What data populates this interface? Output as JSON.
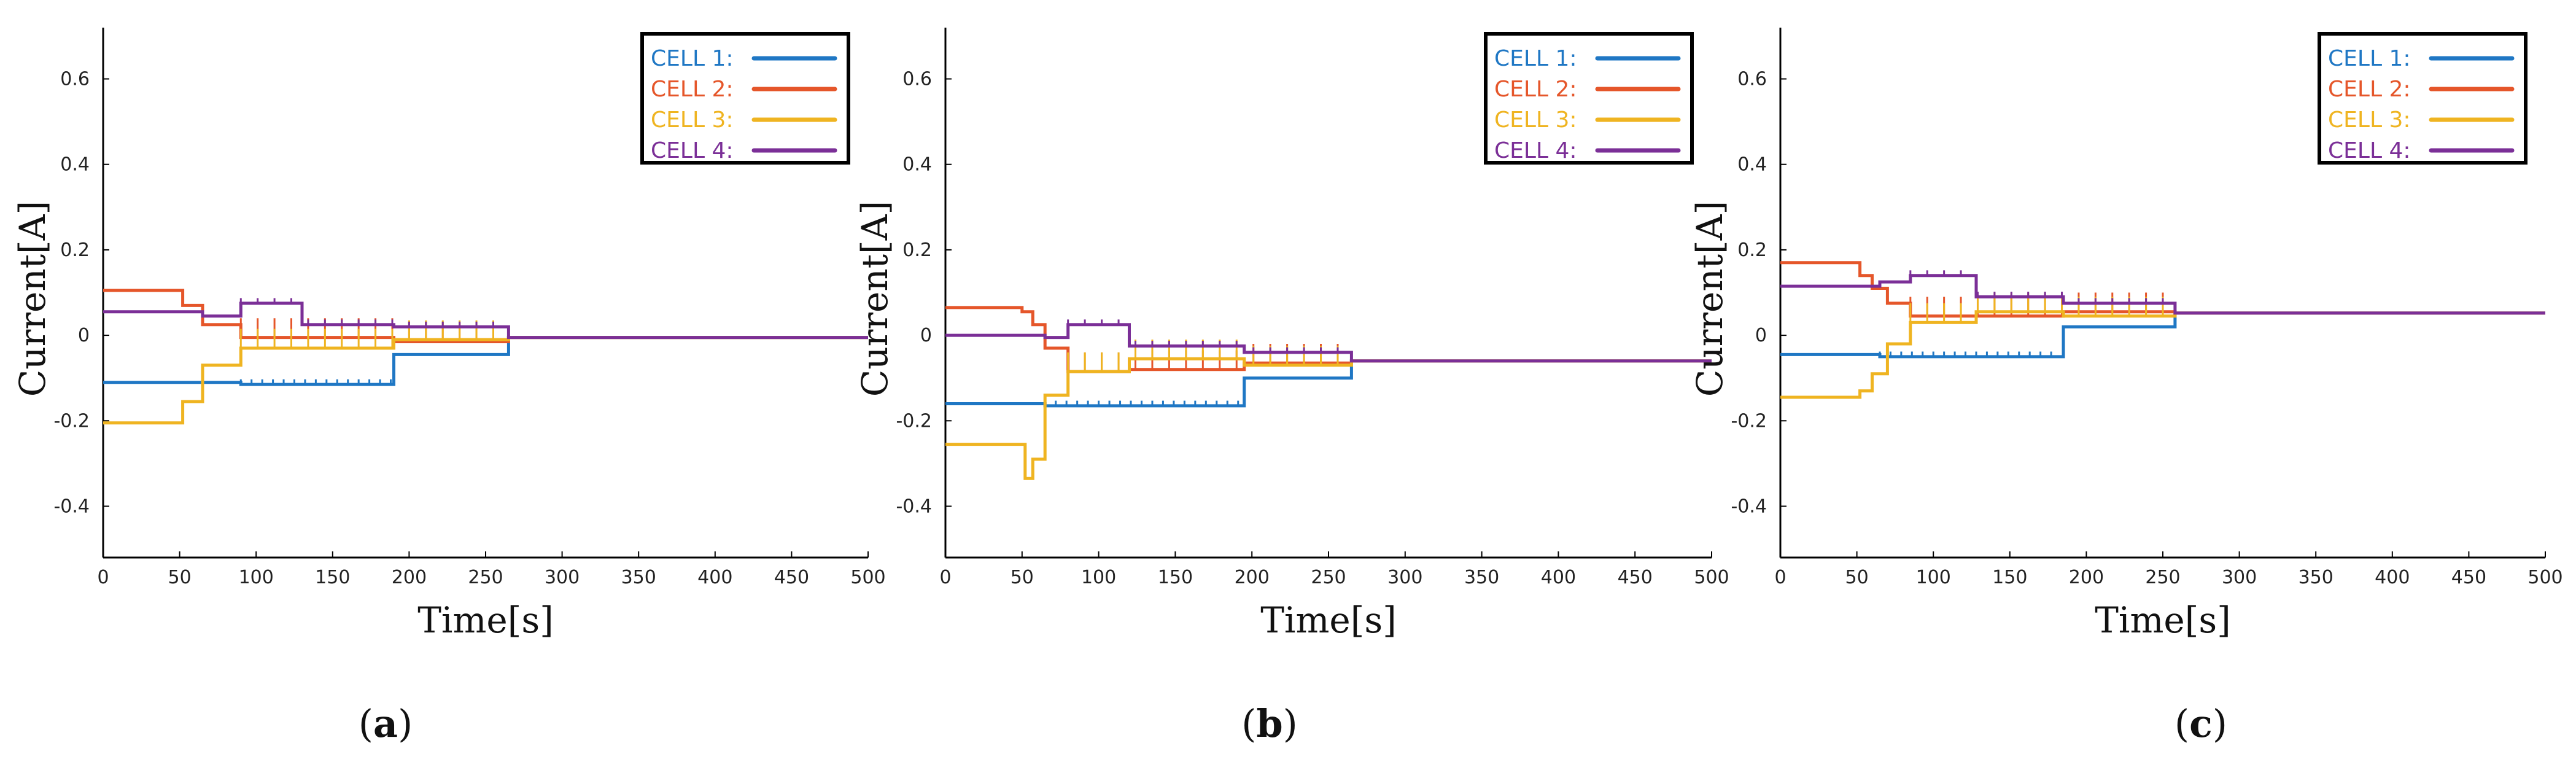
{
  "chart_data": [
    {
      "type": "line",
      "caption": "(a)",
      "caption_letter": "a",
      "xlabel": "Time[s]",
      "ylabel": "Current[A]",
      "xlim": [
        0,
        500
      ],
      "ylim": [
        -0.52,
        0.72
      ],
      "xticks": [
        "0",
        "50",
        "100",
        "150",
        "200",
        "250",
        "300",
        "350",
        "400",
        "450",
        "500"
      ],
      "yticks": [
        "-0.4",
        "-0.2",
        "0",
        "0.2",
        "0.4",
        "0.6"
      ],
      "legend_position": "top-right",
      "series": [
        {
          "name": "CELL 1:",
          "color": "#1f77c4",
          "x": [
            0,
            65,
            90,
            130,
            190,
            265,
            500
          ],
          "y": [
            -0.11,
            -0.11,
            -0.115,
            -0.115,
            -0.045,
            -0.005,
            -0.005
          ],
          "spike_range": [
            90,
            188
          ]
        },
        {
          "name": "CELL 2:",
          "color": "#e5562a",
          "x": [
            0,
            52,
            65,
            90,
            130,
            190,
            265,
            500
          ],
          "y": [
            0.105,
            0.07,
            0.025,
            -0.005,
            -0.005,
            -0.015,
            -0.005,
            -0.005
          ],
          "spike_range": [
            90,
            262
          ]
        },
        {
          "name": "CELL 3:",
          "color": "#efb421",
          "x": [
            0,
            52,
            65,
            90,
            130,
            190,
            265,
            500
          ],
          "y": [
            -0.205,
            -0.155,
            -0.07,
            -0.03,
            -0.03,
            -0.01,
            -0.005,
            -0.005
          ],
          "spike_range": [
            90,
            262
          ]
        },
        {
          "name": "CELL 4:",
          "color": "#7b2f97",
          "x": [
            0,
            52,
            65,
            90,
            130,
            190,
            265,
            500
          ],
          "y": [
            0.055,
            0.055,
            0.045,
            0.075,
            0.025,
            0.02,
            -0.005,
            -0.005
          ],
          "spike_range": [
            90,
            262
          ]
        }
      ]
    },
    {
      "type": "line",
      "caption": "(b)",
      "caption_letter": "b",
      "xlabel": "Time[s]",
      "ylabel": "Current[A]",
      "xlim": [
        0,
        500
      ],
      "ylim": [
        -0.52,
        0.72
      ],
      "xticks": [
        "0",
        "50",
        "100",
        "150",
        "200",
        "250",
        "300",
        "350",
        "400",
        "450",
        "500"
      ],
      "yticks": [
        "-0.4",
        "-0.2",
        "0",
        "0.2",
        "0.4",
        "0.6"
      ],
      "legend_position": "top-right",
      "series": [
        {
          "name": "CELL 1:",
          "color": "#1f77c4",
          "x": [
            0,
            50,
            65,
            120,
            195,
            265,
            500
          ],
          "y": [
            -0.16,
            -0.16,
            -0.165,
            -0.165,
            -0.1,
            -0.06,
            -0.06
          ],
          "spike_range": [
            65,
            192
          ]
        },
        {
          "name": "CELL 2:",
          "color": "#e5562a",
          "x": [
            0,
            50,
            57,
            65,
            80,
            120,
            195,
            265,
            500
          ],
          "y": [
            0.065,
            0.055,
            0.025,
            -0.03,
            -0.085,
            -0.08,
            -0.065,
            -0.06,
            -0.06
          ],
          "spike_range": [
            80,
            262
          ]
        },
        {
          "name": "CELL 3:",
          "color": "#efb421",
          "x": [
            0,
            50,
            52,
            57,
            65,
            80,
            120,
            195,
            265,
            500
          ],
          "y": [
            -0.255,
            -0.255,
            -0.335,
            -0.29,
            -0.14,
            -0.085,
            -0.055,
            -0.07,
            -0.06,
            -0.06
          ],
          "spike_range": [
            80,
            262
          ]
        },
        {
          "name": "CELL 4:",
          "color": "#7b2f97",
          "x": [
            0,
            50,
            65,
            80,
            120,
            195,
            265,
            500
          ],
          "y": [
            0.0,
            0.0,
            -0.005,
            0.025,
            -0.025,
            -0.04,
            -0.06,
            -0.06
          ],
          "spike_range": [
            80,
            262
          ]
        }
      ]
    },
    {
      "type": "line",
      "caption": "(c)",
      "caption_letter": "c",
      "xlabel": "Time[s]",
      "ylabel": "Current[A]",
      "xlim": [
        0,
        500
      ],
      "ylim": [
        -0.52,
        0.72
      ],
      "xticks": [
        "0",
        "50",
        "100",
        "150",
        "200",
        "250",
        "300",
        "350",
        "400",
        "450",
        "500"
      ],
      "yticks": [
        "-0.4",
        "-0.2",
        "0",
        "0.2",
        "0.4",
        "0.6"
      ],
      "legend_position": "top-right",
      "series": [
        {
          "name": "CELL 1:",
          "color": "#1f77c4",
          "x": [
            0,
            52,
            65,
            128,
            185,
            258,
            500
          ],
          "y": [
            -0.045,
            -0.045,
            -0.05,
            -0.05,
            0.02,
            0.052,
            0.052
          ],
          "spike_range": [
            65,
            183
          ]
        },
        {
          "name": "CELL 2:",
          "color": "#e5562a",
          "x": [
            0,
            52,
            60,
            70,
            85,
            128,
            185,
            258,
            500
          ],
          "y": [
            0.17,
            0.14,
            0.11,
            0.075,
            0.045,
            0.045,
            0.055,
            0.052,
            0.052
          ],
          "spike_range": [
            85,
            256
          ]
        },
        {
          "name": "CELL 3:",
          "color": "#efb421",
          "x": [
            0,
            52,
            60,
            70,
            85,
            128,
            185,
            258,
            500
          ],
          "y": [
            -0.145,
            -0.13,
            -0.09,
            -0.02,
            0.03,
            0.055,
            0.045,
            0.052,
            0.052
          ],
          "spike_range": [
            85,
            256
          ]
        },
        {
          "name": "CELL 4:",
          "color": "#7b2f97",
          "x": [
            0,
            52,
            65,
            85,
            128,
            185,
            258,
            500
          ],
          "y": [
            0.115,
            0.115,
            0.125,
            0.14,
            0.09,
            0.075,
            0.052,
            0.052
          ],
          "spike_range": [
            85,
            256
          ]
        }
      ]
    }
  ]
}
